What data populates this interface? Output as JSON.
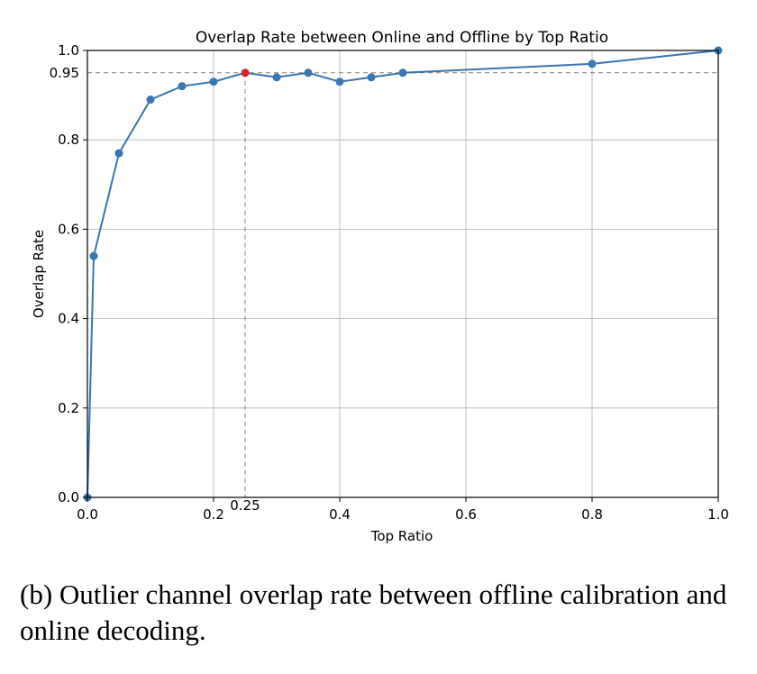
{
  "caption": "(b) Outlier channel overlap rate between offline calibration and online decoding.",
  "chart_data": {
    "type": "line",
    "title": "Overlap Rate between Online and Offline by Top Ratio",
    "xlabel": "Top Ratio",
    "ylabel": "Overlap Rate",
    "xlim": [
      0.0,
      1.0
    ],
    "ylim": [
      0.0,
      1.0
    ],
    "grid": true,
    "x_ticks": [
      "0.0",
      "0.2",
      "0.4",
      "0.6",
      "0.8",
      "1.0"
    ],
    "y_ticks": [
      "0.0",
      "0.2",
      "0.4",
      "0.6",
      "0.8",
      "1.0"
    ],
    "x": [
      0.0,
      0.01,
      0.05,
      0.1,
      0.15,
      0.2,
      0.25,
      0.3,
      0.35,
      0.4,
      0.45,
      0.5,
      0.8,
      1.0
    ],
    "series": [
      {
        "values": [
          0.0,
          0.54,
          0.77,
          0.89,
          0.92,
          0.93,
          0.95,
          0.94,
          0.95,
          0.93,
          0.94,
          0.95,
          0.97,
          1.0
        ],
        "color": "#3a76b0"
      }
    ],
    "highlight_point": {
      "x": 0.25,
      "y": 0.95,
      "color": "#d62728"
    },
    "reference_lines": {
      "horizontal": {
        "y": 0.95,
        "label": "0.95"
      },
      "vertical": {
        "x": 0.25,
        "label": "0.25"
      }
    }
  }
}
